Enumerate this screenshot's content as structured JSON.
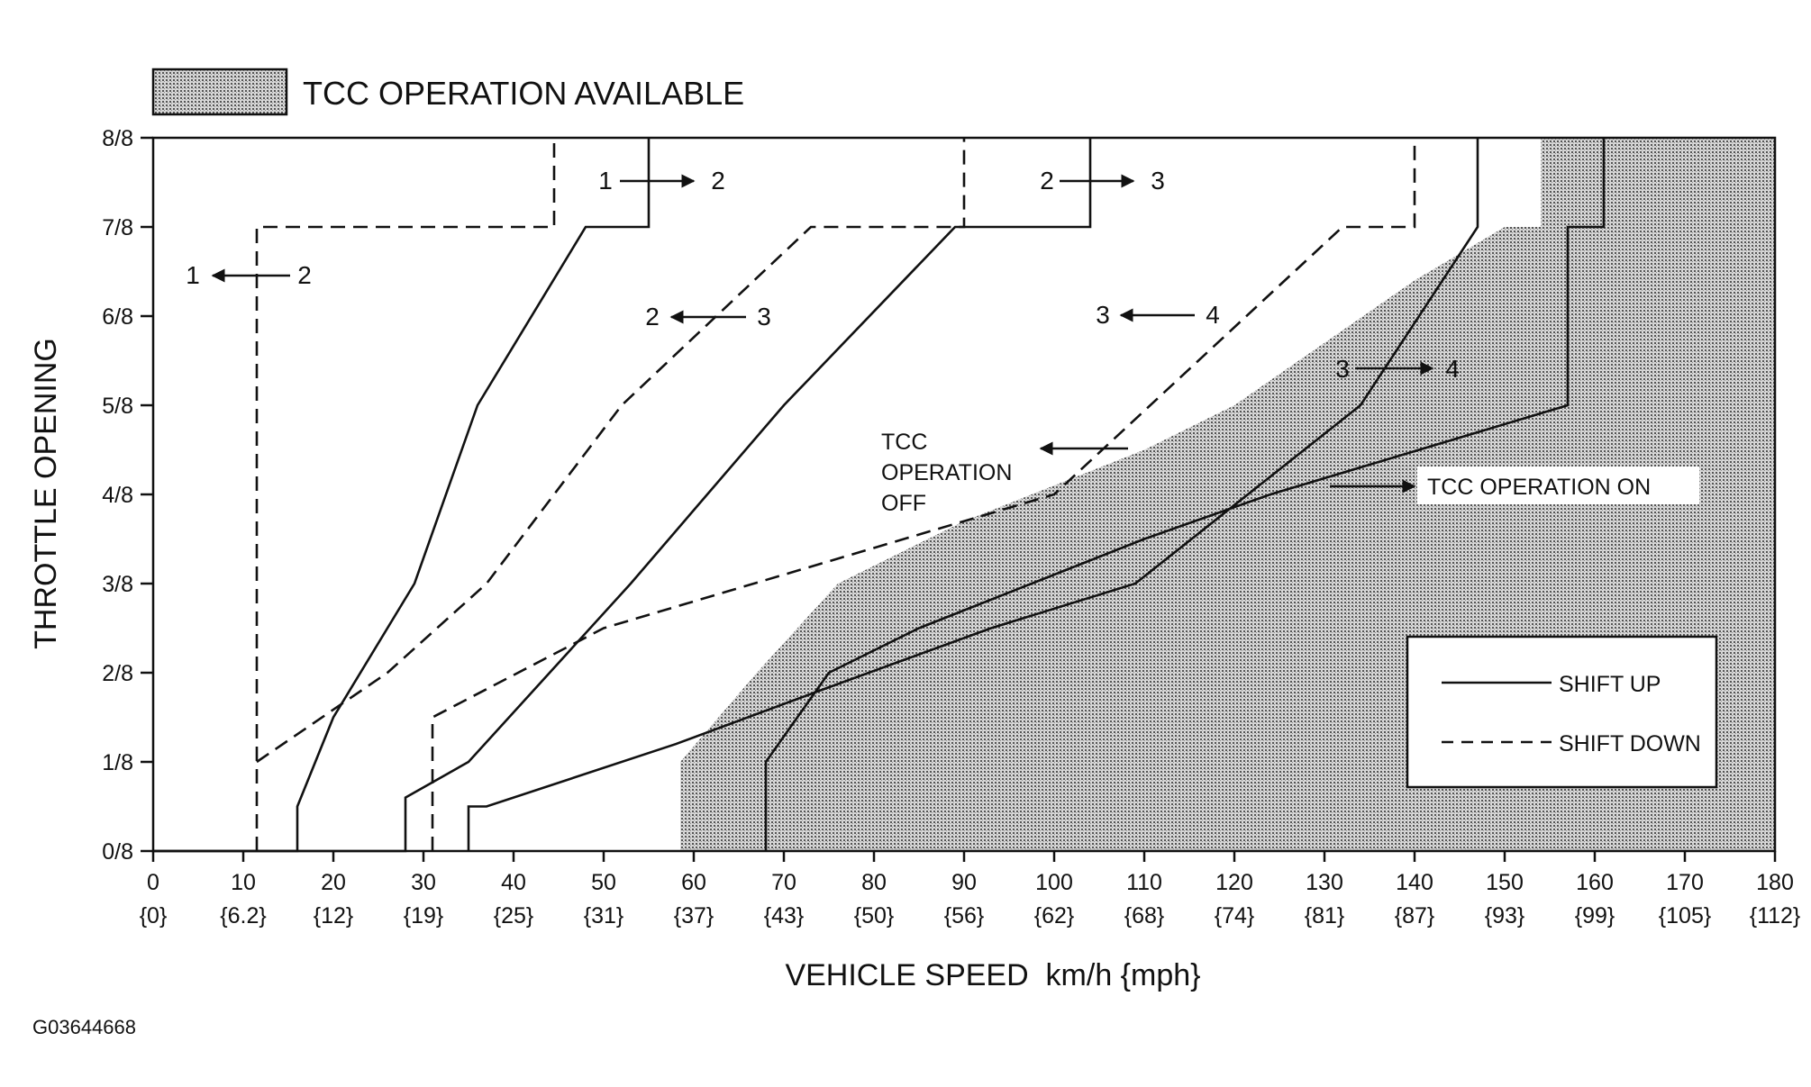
{
  "chart_data": {
    "type": "line",
    "legend_top": {
      "label": "TCC OPERATION AVAILABLE"
    },
    "xlabel": "VEHICLE SPEED  km/h {mph}",
    "ylabel": "THROTTLE OPENING",
    "xlim": [
      0,
      180
    ],
    "ylim": [
      0,
      8
    ],
    "x_ticks": [
      {
        "kmh": "0",
        "mph": "{0}"
      },
      {
        "kmh": "10",
        "mph": "{6.2}"
      },
      {
        "kmh": "20",
        "mph": "{12}"
      },
      {
        "kmh": "30",
        "mph": "{19}"
      },
      {
        "kmh": "40",
        "mph": "{25}"
      },
      {
        "kmh": "50",
        "mph": "{31}"
      },
      {
        "kmh": "60",
        "mph": "{37}"
      },
      {
        "kmh": "70",
        "mph": "{43}"
      },
      {
        "kmh": "80",
        "mph": "{50}"
      },
      {
        "kmh": "90",
        "mph": "{56}"
      },
      {
        "kmh": "100",
        "mph": "{62}"
      },
      {
        "kmh": "110",
        "mph": "{68}"
      },
      {
        "kmh": "120",
        "mph": "{74}"
      },
      {
        "kmh": "130",
        "mph": "{81}"
      },
      {
        "kmh": "140",
        "mph": "{87}"
      },
      {
        "kmh": "150",
        "mph": "{93}"
      },
      {
        "kmh": "160",
        "mph": "{99}"
      },
      {
        "kmh": "170",
        "mph": "{105}"
      },
      {
        "kmh": "180",
        "mph": "{112}"
      }
    ],
    "y_ticks": [
      "0/8",
      "1/8",
      "2/8",
      "3/8",
      "4/8",
      "5/8",
      "6/8",
      "7/8",
      "8/8"
    ],
    "tcc_region": [
      [
        58.5,
        0
      ],
      [
        58.5,
        1
      ],
      [
        67,
        2
      ],
      [
        76,
        3
      ],
      [
        90,
        3.7
      ],
      [
        110,
        4.5
      ],
      [
        120,
        5
      ],
      [
        130,
        5.7
      ],
      [
        140,
        6.4
      ],
      [
        150,
        7
      ],
      [
        154,
        7
      ],
      [
        154,
        8
      ],
      [
        180,
        8
      ],
      [
        180,
        0
      ]
    ],
    "series": [
      {
        "name": "SHIFT UP",
        "style": "solid",
        "points": [
          [
            0,
            0
          ],
          [
            16,
            0
          ],
          [
            16,
            0.5
          ],
          [
            20,
            1.5
          ],
          [
            29,
            3
          ],
          [
            36,
            5
          ],
          [
            48,
            7
          ],
          [
            55,
            7
          ],
          [
            55,
            8
          ]
        ]
      },
      {
        "name": "SHIFT UP",
        "style": "solid",
        "points": [
          [
            0,
            0
          ],
          [
            28,
            0
          ],
          [
            28,
            0.6
          ],
          [
            35,
            1
          ],
          [
            44,
            2
          ],
          [
            53,
            3
          ],
          [
            70,
            5
          ],
          [
            89,
            7
          ],
          [
            104,
            7
          ],
          [
            104,
            8
          ]
        ]
      },
      {
        "name": "SHIFT UP",
        "style": "solid",
        "points": [
          [
            35,
            0
          ],
          [
            35,
            0.5
          ],
          [
            37,
            0.5
          ],
          [
            58,
            1.2
          ],
          [
            74,
            1.8
          ],
          [
            93,
            2.5
          ],
          [
            109,
            3
          ],
          [
            134,
            5
          ],
          [
            147,
            7
          ],
          [
            147,
            8
          ]
        ]
      },
      {
        "name": "SHIFT UP",
        "style": "solid",
        "points": [
          [
            68,
            0
          ],
          [
            68,
            1
          ],
          [
            75,
            2
          ],
          [
            85,
            2.5
          ],
          [
            110,
            3.5
          ],
          [
            124,
            4
          ],
          [
            157,
            5
          ],
          [
            157,
            7
          ],
          [
            161,
            7
          ],
          [
            161,
            8
          ]
        ]
      },
      {
        "name": "SHIFT DOWN",
        "style": "dashed",
        "points": [
          [
            11.5,
            0
          ],
          [
            11.5,
            7
          ],
          [
            44.5,
            7
          ],
          [
            44.5,
            8
          ]
        ]
      },
      {
        "name": "SHIFT DOWN",
        "style": "dashed",
        "points": [
          [
            11.5,
            1
          ],
          [
            26,
            2
          ],
          [
            37,
            3
          ],
          [
            52,
            5
          ],
          [
            73,
            7
          ],
          [
            90,
            7
          ],
          [
            90,
            8
          ]
        ]
      },
      {
        "name": "SHIFT DOWN",
        "style": "dashed",
        "points": [
          [
            31,
            0
          ],
          [
            31,
            1.5
          ],
          [
            50,
            2.5
          ],
          [
            100,
            4
          ],
          [
            132,
            7
          ],
          [
            140,
            7
          ],
          [
            140,
            8
          ]
        ]
      }
    ],
    "annotations": [
      {
        "from": "1",
        "to": "2"
      },
      {
        "from": "2",
        "to": "3"
      },
      {
        "from": "1",
        "to": "2",
        "direction": "down"
      },
      {
        "from": "2",
        "to": "3",
        "direction": "down"
      },
      {
        "from": "3",
        "to": "4",
        "direction": "down"
      },
      {
        "from": "3",
        "to": "4"
      }
    ],
    "tcc_off_label": [
      "TCC",
      "OPERATION",
      "OFF"
    ],
    "tcc_on_label": "TCC OPERATION ON",
    "key": {
      "shift_up": "SHIFT UP",
      "shift_down": "SHIFT DOWN"
    }
  },
  "figure_id": "G03644668"
}
